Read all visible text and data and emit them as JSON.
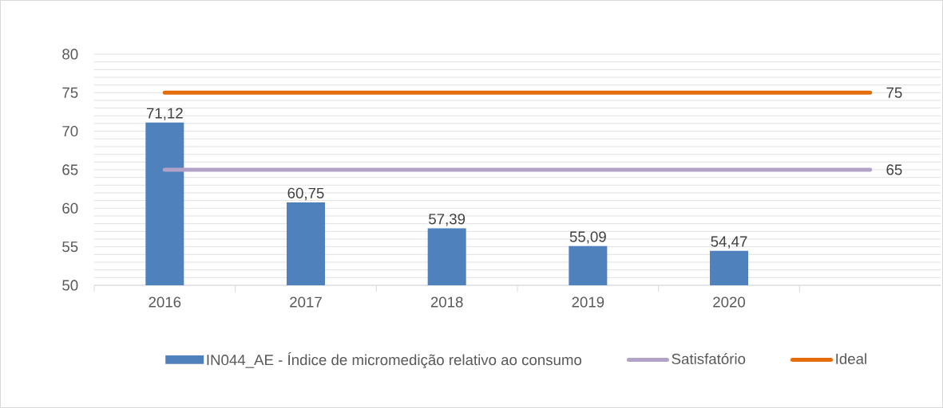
{
  "chart_data": {
    "type": "bar",
    "categories": [
      "2016",
      "2017",
      "2018",
      "2019",
      "2020",
      null
    ],
    "ylim": [
      50,
      80
    ],
    "yticks": [
      50,
      {
        "value": 51,
        "label": null
      },
      {
        "value": 52,
        "label": null
      },
      {
        "value": 53,
        "label": null
      },
      {
        "value": 54,
        "label": null
      },
      55,
      {
        "value": 56,
        "label": null
      },
      {
        "value": 57,
        "label": null
      },
      {
        "value": 58,
        "label": null
      },
      {
        "value": 59,
        "label": null
      },
      60,
      {
        "value": 61,
        "label": null
      },
      {
        "value": 62,
        "label": null
      },
      {
        "value": 63,
        "label": null
      },
      {
        "value": 64,
        "label": null
      },
      65,
      {
        "value": 66,
        "label": null
      },
      {
        "value": 67,
        "label": null
      },
      {
        "value": 68,
        "label": null
      },
      {
        "value": 69,
        "label": null
      },
      70,
      {
        "value": 71,
        "label": null
      },
      {
        "value": 72,
        "label": null
      },
      {
        "value": 73,
        "label": null
      },
      {
        "value": 74,
        "label": null
      },
      75,
      {
        "value": 76,
        "label": null
      },
      {
        "value": 77,
        "label": null
      },
      {
        "value": 78,
        "label": null
      },
      {
        "value": 79,
        "label": null
      },
      80
    ],
    "grid": "y",
    "legend": "bottom",
    "marker": "none",
    "line_style": "solid",
    "series": [
      {
        "name": "IN044_AE - Índice de micromedição relativo ao consumo",
        "color": "#4f81bd",
        "values": [
          71.12,
          60.75,
          57.39,
          55.09,
          54.47,
          null
        ],
        "value_labels": [
          "71,12",
          "60,75",
          "57,39",
          "55,09",
          "54,47",
          null
        ]
      },
      {
        "name": "Satisfatório",
        "type": "line",
        "color": "#b3a2c7",
        "values": [
          65,
          65,
          65,
          65,
          65,
          65
        ],
        "value_labels": [
          null,
          null,
          null,
          null,
          null,
          "65"
        ]
      },
      {
        "name": "Ideal",
        "type": "line",
        "color": "#e46c0a",
        "values": [
          75,
          75,
          75,
          75,
          75,
          75
        ],
        "value_labels": [
          null,
          null,
          null,
          null,
          null,
          "75"
        ]
      }
    ]
  }
}
